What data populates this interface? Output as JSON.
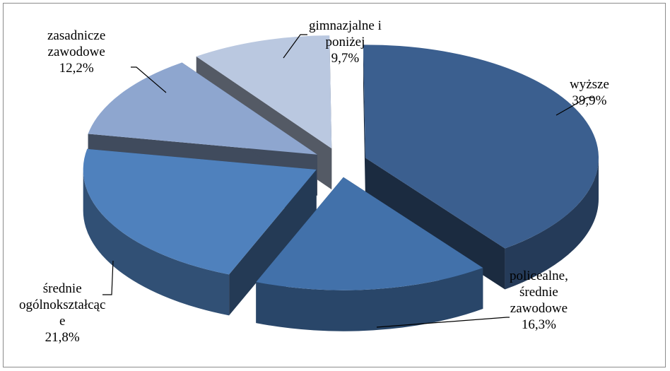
{
  "chart_data": {
    "type": "pie",
    "style": "3d-exploded",
    "legend": "none",
    "slices": [
      {
        "name": "wyższe",
        "label_lines": [
          "wyższe"
        ],
        "value": 39.9,
        "value_label": "39,9%",
        "color": "#3b5f8f"
      },
      {
        "name": "policealne, średnie zawodowe",
        "label_lines": [
          "policealne,",
          "średnie",
          "zawodowe"
        ],
        "value": 16.3,
        "value_label": "16,3%",
        "color": "#4271aa"
      },
      {
        "name": "średnie ogólnokształcące",
        "label_lines": [
          "średnie",
          "ogólnokształcąc",
          "e"
        ],
        "value": 21.8,
        "value_label": "21,8%",
        "color": "#4f81bd"
      },
      {
        "name": "zasadnicze zawodowe",
        "label_lines": [
          "zasadnicze",
          "zawodowe"
        ],
        "value": 12.2,
        "value_label": "12,2%",
        "color": "#8ea6cf"
      },
      {
        "name": "gimnazjalne i poniżej",
        "label_lines": [
          "gimnazjalne i",
          "poniżej"
        ],
        "value": 9.7,
        "value_label": "9,7%",
        "color": "#bac8e0"
      }
    ]
  }
}
